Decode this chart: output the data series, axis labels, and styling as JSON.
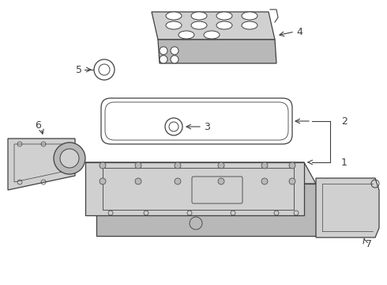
{
  "bg_color": "#ffffff",
  "line_color": "#404040",
  "fill_light": "#e8e8e8",
  "fill_mid": "#d0d0d0",
  "fill_dark": "#b8b8b8",
  "figsize": [
    4.9,
    3.6
  ],
  "dpi": 100,
  "parts": {
    "part4_label": "4",
    "part5_label": "5",
    "part2_label": "2",
    "part3_label": "3",
    "part1_label": "1",
    "part6_label": "6",
    "part7_label": "7"
  }
}
